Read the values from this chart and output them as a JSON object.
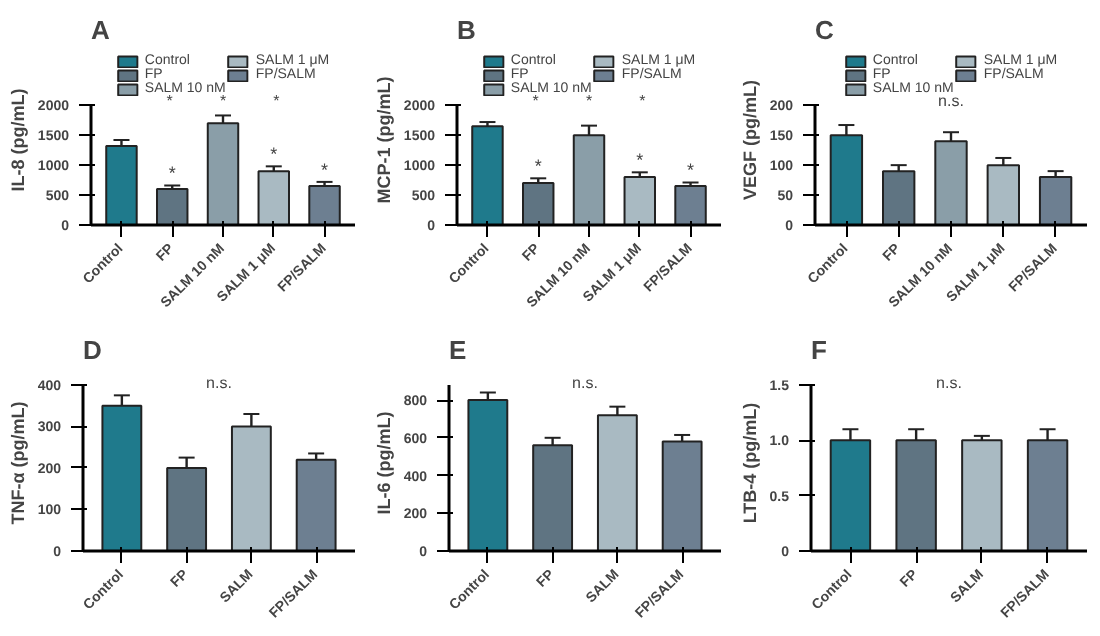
{
  "chart_data": [
    {
      "type": "bar",
      "title": "A",
      "ylabel": "IL-8 (pg/mL)",
      "categories": [
        "Control",
        "FP",
        "SALM 10 nM",
        "SALM 1 μM",
        "FP/SALM"
      ],
      "ylim": [
        0,
        2000
      ],
      "yticks": [
        0,
        500,
        1000,
        1500,
        2000
      ],
      "legend": "top",
      "grid": false,
      "series": [
        {
          "name": "Control",
          "color": "#1f7a8c",
          "values": [
            1320,
            null,
            null,
            null,
            null
          ],
          "errors": [
            100,
            null,
            null,
            null,
            null
          ]
        },
        {
          "name": "FP",
          "color": "#5f7482",
          "values": [
            null,
            600,
            null,
            null,
            null
          ],
          "errors": [
            null,
            60,
            null,
            null,
            null
          ]
        },
        {
          "name": "SALM 10 nM",
          "color": "#8a9ea8",
          "values": [
            null,
            null,
            1700,
            null,
            null
          ],
          "errors": [
            null,
            null,
            130,
            null,
            null
          ]
        },
        {
          "name": "SALM 1 μM",
          "color": "#a9bac2",
          "values": [
            null,
            null,
            null,
            900,
            null
          ],
          "errors": [
            null,
            null,
            null,
            80,
            null
          ]
        },
        {
          "name": "FP/SALM",
          "color": "#6d7f91",
          "values": [
            null,
            null,
            null,
            null,
            650
          ],
          "errors": [
            null,
            null,
            null,
            null,
            70
          ]
        }
      ],
      "annotations": [
        {
          "text": "*",
          "x": "FP",
          "y": 700
        },
        {
          "text": "*",
          "x": "SALM 1 μM",
          "y": 1020
        },
        {
          "text": "*",
          "x": "FP/SALM",
          "y": 760
        },
        "*",
        "*",
        "*"
      ]
    },
    {
      "type": "bar",
      "title": "B",
      "ylabel": "MCP-1 (pg/mL)",
      "categories": [
        "Control",
        "FP",
        "SALM 10 nM",
        "SALM 1 μM",
        "FP/SALM"
      ],
      "ylim": [
        0,
        2000
      ],
      "yticks": [
        0,
        500,
        1000,
        1500,
        2000
      ],
      "legend": "top",
      "grid": false,
      "series": [
        {
          "name": "Control",
          "color": "#1f7a8c",
          "values": [
            1650,
            null,
            null,
            null,
            null
          ],
          "errors": [
            70,
            null,
            null,
            null,
            null
          ]
        },
        {
          "name": "FP",
          "color": "#5f7482",
          "values": [
            null,
            700,
            null,
            null,
            null
          ],
          "errors": [
            null,
            80,
            null,
            null,
            null
          ]
        },
        {
          "name": "SALM 10 nM",
          "color": "#8a9ea8",
          "values": [
            null,
            null,
            1500,
            null,
            null
          ],
          "errors": [
            null,
            null,
            160,
            null,
            null
          ]
        },
        {
          "name": "SALM 1 μM",
          "color": "#a9bac2",
          "values": [
            null,
            null,
            null,
            800,
            null
          ],
          "errors": [
            null,
            null,
            null,
            80,
            null
          ]
        },
        {
          "name": "FP/SALM",
          "color": "#6d7f91",
          "values": [
            null,
            null,
            null,
            null,
            650
          ],
          "errors": [
            null,
            null,
            null,
            null,
            60
          ]
        }
      ],
      "annotations": [
        {
          "text": "*",
          "x": "FP",
          "y": 820
        },
        {
          "text": "*",
          "x": "SALM 1 μM",
          "y": 920
        },
        {
          "text": "*",
          "x": "FP/SALM",
          "y": 750
        },
        "*",
        "*",
        "*"
      ]
    },
    {
      "type": "bar",
      "title": "C",
      "ylabel": "VEGF (pg/mL)",
      "categories": [
        "Control",
        "FP",
        "SALM 10 nM",
        "SALM 1 μM",
        "FP/SALM"
      ],
      "ylim": [
        0,
        200
      ],
      "yticks": [
        0,
        50,
        100,
        150,
        200
      ],
      "legend": "top",
      "grid": false,
      "series": [
        {
          "name": "Control",
          "color": "#1f7a8c",
          "values": [
            150,
            null,
            null,
            null,
            null
          ],
          "errors": [
            17,
            null,
            null,
            null,
            null
          ]
        },
        {
          "name": "FP",
          "color": "#5f7482",
          "values": [
            null,
            90,
            null,
            null,
            null
          ],
          "errors": [
            null,
            10,
            null,
            null,
            null
          ]
        },
        {
          "name": "SALM 10 nM",
          "color": "#8a9ea8",
          "values": [
            null,
            null,
            140,
            null,
            null
          ],
          "errors": [
            null,
            null,
            15,
            null,
            null
          ]
        },
        {
          "name": "SALM 1 μM",
          "color": "#a9bac2",
          "values": [
            null,
            null,
            null,
            100,
            null
          ],
          "errors": [
            null,
            null,
            null,
            12,
            null
          ]
        },
        {
          "name": "FP/SALM",
          "color": "#6d7f91",
          "values": [
            null,
            null,
            null,
            null,
            80
          ],
          "errors": [
            null,
            null,
            null,
            null,
            10
          ]
        }
      ],
      "annotations": [
        "n.s."
      ]
    },
    {
      "type": "bar",
      "title": "D",
      "ylabel": "TNF-α (pg/mL)",
      "categories": [
        "Control",
        "FP",
        "SALM",
        "FP/SALM"
      ],
      "values": [
        350,
        200,
        300,
        220
      ],
      "errors": [
        25,
        25,
        30,
        15
      ],
      "colors": [
        "#1f7a8c",
        "#5f7482",
        "#a9bac2",
        "#6d7f91"
      ],
      "ylim": [
        0,
        400
      ],
      "yticks": [
        0,
        100,
        200,
        300,
        400
      ],
      "grid": false,
      "annotations": [
        "n.s."
      ]
    },
    {
      "type": "bar",
      "title": "E",
      "ylabel": "IL-6 (pg/mL)",
      "categories": [
        "Control",
        "FP",
        "SALM",
        "FP/SALM"
      ],
      "values": [
        800,
        560,
        720,
        580
      ],
      "errors": [
        40,
        40,
        45,
        35
      ],
      "colors": [
        "#1f7a8c",
        "#5f7482",
        "#a9bac2",
        "#6d7f91"
      ],
      "ylim": [
        0,
        880
      ],
      "yticks": [
        0,
        200,
        400,
        600,
        800
      ],
      "grid": false,
      "annotations": [
        "n.s."
      ]
    },
    {
      "type": "bar",
      "title": "F",
      "ylabel": "LTB-4 (pg/mL)",
      "categories": [
        "Control",
        "FP",
        "SALM",
        "FP/SALM"
      ],
      "values": [
        1.0,
        1.0,
        1.0,
        1.0
      ],
      "errors": [
        0.1,
        0.1,
        0.04,
        0.1
      ],
      "colors": [
        "#1f7a8c",
        "#5f7482",
        "#a9bac2",
        "#6d7f91"
      ],
      "ylim": [
        0,
        1.5
      ],
      "yticks": [
        0,
        {
          "value": 0.5,
          "label": "0.5"
        },
        {
          "value": 1.0,
          "label": "1.0"
        },
        {
          "value": 1.5,
          "label": "1.5"
        }
      ],
      "grid": false,
      "annotations": [
        "n.s."
      ]
    }
  ]
}
